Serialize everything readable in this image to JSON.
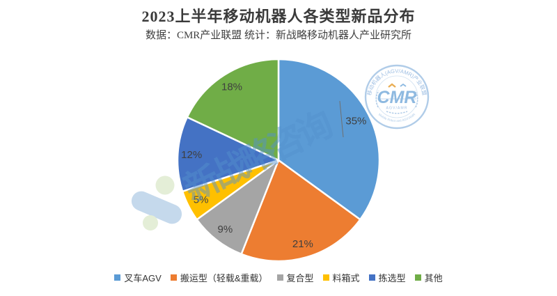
{
  "header": {
    "title": "2023上半年移动机器人各类型新品分布",
    "subtitle": "数据：CMR产业联盟 统计：新战略移动机器人产业研究所"
  },
  "chart_data": {
    "type": "pie",
    "title": "2023上半年移动机器人各类型新品分布",
    "categories": [
      "叉车AGV",
      "搬运型（轻载&重载）",
      "复合型",
      "料箱式",
      "拣选型",
      "其他"
    ],
    "values": [
      35,
      21,
      9,
      5,
      12,
      18
    ],
    "labels": [
      "35%",
      "21%",
      "9%",
      "5%",
      "12%",
      "18%"
    ],
    "unit": "%",
    "colors": [
      "#5B9BD5",
      "#ED7D31",
      "#A5A5A5",
      "#FFC000",
      "#4472C4",
      "#70AD47"
    ],
    "start_angle_deg": 0,
    "direction": "clockwise",
    "legend_position": "bottom",
    "label_color": "#3f3f3f"
  },
  "watermark": {
    "text": "新战略咨询",
    "color": "#5490CD"
  },
  "stamp": {
    "top_text": "移动机器人(AGV/AMR)产业联盟",
    "center_text": "CMR",
    "sub_text": "AGV/AMR",
    "bottom_text": "Mobile Robot and AGV/AMR",
    "color": "#8FB5DF"
  }
}
